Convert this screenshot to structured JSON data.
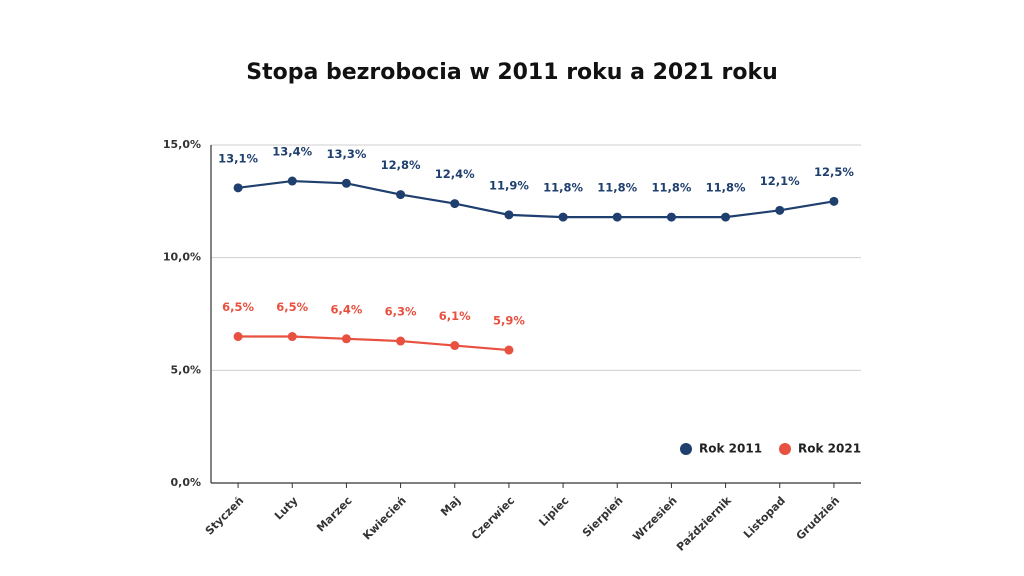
{
  "chart_data": {
    "type": "line",
    "title": "Stopa bezrobocia w 2011 roku a 2021 roku",
    "categories": [
      "Styczeń",
      "Luty",
      "Marzec",
      "Kwiecień",
      "Maj",
      "Czerwiec",
      "Lipiec",
      "Sierpień",
      "Wrzesień",
      "Październik",
      "Listopad",
      "Grudzień"
    ],
    "series": [
      {
        "name": "Rok 2011",
        "color": "#1f3f6e",
        "values": [
          13.1,
          13.4,
          13.3,
          12.8,
          12.4,
          11.9,
          11.8,
          11.8,
          11.8,
          11.8,
          12.1,
          12.5
        ],
        "value_labels": [
          "13,1%",
          "13,4%",
          "13,3%",
          "12,8%",
          "12,4%",
          "11,9%",
          "11,8%",
          "11,8%",
          "11,8%",
          "11,8%",
          "12,1%",
          "12,5%"
        ]
      },
      {
        "name": "Rok 2021",
        "color": "#e8503f",
        "values": [
          6.5,
          6.5,
          6.4,
          6.3,
          6.1,
          5.9,
          null,
          null,
          null,
          null,
          null,
          null
        ],
        "value_labels": [
          "6,5%",
          "6,5%",
          "6,4%",
          "6,3%",
          "6,1%",
          "5,9%",
          null,
          null,
          null,
          null,
          null,
          null
        ]
      }
    ],
    "ylim": [
      0,
      15
    ],
    "yticks": [
      {
        "value": 0,
        "label": "0,0%"
      },
      {
        "value": 5,
        "label": "5,0%"
      },
      {
        "value": 10,
        "label": "10,0%"
      },
      {
        "value": 15,
        "label": "15,0%"
      }
    ],
    "grid": true,
    "legend": "lower right"
  }
}
